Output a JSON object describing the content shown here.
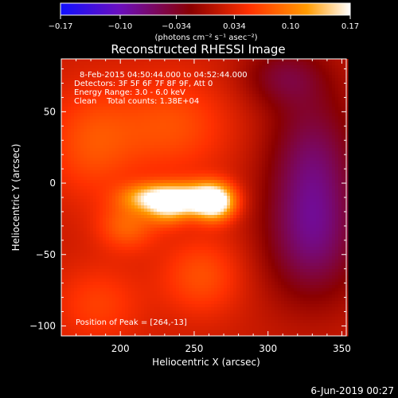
{
  "chart_data": {
    "type": "heatmap",
    "title": "Reconstructed RHESSI Image",
    "colorbar": {
      "ticks": [
        "−0.17",
        "−0.10",
        "−0.034",
        "0.034",
        "0.10",
        "0.17"
      ],
      "range": [
        -0.17,
        0.17
      ],
      "units_label": "(photons cm⁻² s⁻¹ asec⁻²)",
      "colormap": "rainbow-like: blue-purple-red-orange-yellow-white",
      "colors": [
        "#1010ff",
        "#6a0fc0",
        "#8a0000",
        "#ff3000",
        "#ff9a00",
        "#ffffff"
      ]
    },
    "xlabel": "Heliocentric X (arcsec)",
    "ylabel": "Heliocentric Y (arcsec)",
    "xlim": [
      160,
      353
    ],
    "ylim": [
      -107,
      87
    ],
    "x_ticks": [
      200,
      250,
      300,
      350
    ],
    "y_ticks": [
      50,
      0,
      -50,
      -100
    ],
    "x_tick_labels": [
      "200",
      "250",
      "300",
      "350"
    ],
    "y_tick_labels": [
      "50",
      "0",
      "−50",
      "−100"
    ],
    "annotations": [
      "8-Feb-2015 04:50:44.000 to 04:52:44.000",
      "Detectors: 3F 5F 6F 7F 8F 9F, Att 0",
      "Energy Range: 3.0 - 6.0 keV",
      "Clean    Total counts: 1.38E+04"
    ],
    "peak_label": "Position of Peak = [264,-13]",
    "peak": {
      "x": 264,
      "y": -13
    },
    "sources": [
      {
        "x": 264,
        "y": -13,
        "intensity": 0.17,
        "sx": 10,
        "sy": 9
      },
      {
        "x": 246,
        "y": -11,
        "intensity": 0.12,
        "sx": 14,
        "sy": 8
      },
      {
        "x": 221,
        "y": -10,
        "intensity": 0.11,
        "sx": 14,
        "sy": 7
      },
      {
        "x": 232,
        "y": -19,
        "intensity": 0.07,
        "sx": 10,
        "sy": 8
      },
      {
        "x": 205,
        "y": -30,
        "intensity": 0.06,
        "sx": 14,
        "sy": 12
      },
      {
        "x": 180,
        "y": 28,
        "intensity": 0.05,
        "sx": 22,
        "sy": 28
      },
      {
        "x": 235,
        "y": 40,
        "intensity": 0.05,
        "sx": 28,
        "sy": 25
      },
      {
        "x": 255,
        "y": -65,
        "intensity": 0.05,
        "sx": 20,
        "sy": 20
      },
      {
        "x": 185,
        "y": -85,
        "intensity": 0.04,
        "sx": 22,
        "sy": 20
      },
      {
        "x": 330,
        "y": 10,
        "intensity": -0.08,
        "sx": 22,
        "sy": 40
      },
      {
        "x": 330,
        "y": -45,
        "intensity": -0.06,
        "sx": 24,
        "sy": 30
      },
      {
        "x": 310,
        "y": 75,
        "intensity": -0.05,
        "sx": 20,
        "sy": 15
      }
    ]
  },
  "timestamp": "6-Jun-2019 00:27"
}
